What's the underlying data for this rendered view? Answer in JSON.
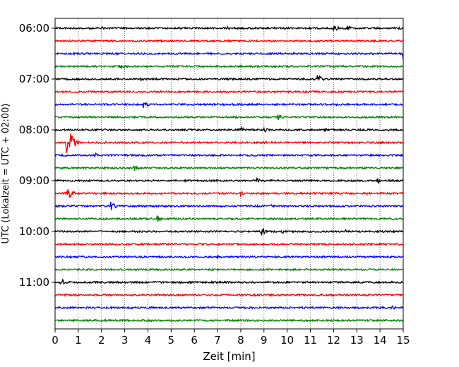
{
  "chart_data": {
    "type": "line",
    "title": "",
    "xlabel": "Zeit  [min]",
    "ylabel": "UTC (Lokalzeit = UTC + 02:00)",
    "xlim": [
      0,
      15
    ],
    "x_ticks": [
      0,
      1,
      2,
      3,
      4,
      5,
      6,
      7,
      8,
      9,
      10,
      11,
      12,
      13,
      14,
      15
    ],
    "y_tick_labels": [
      "06:00",
      "07:00",
      "08:00",
      "09:00",
      "10:00",
      "11:00"
    ],
    "grid": {
      "vertical": true,
      "style": "dotted"
    },
    "trace_colors": [
      "#000000",
      "#ff0000",
      "#0000ff",
      "#008000"
    ],
    "traces": [
      {
        "start": "06:00",
        "events": [
          {
            "t": 2.0,
            "amp": 3
          },
          {
            "t": 7.4,
            "amp": 3
          },
          {
            "t": 12.0,
            "amp": 6
          },
          {
            "t": 12.6,
            "amp": 4
          }
        ]
      },
      {
        "start": "06:15",
        "events": []
      },
      {
        "start": "06:30",
        "events": [
          {
            "t": 15.0,
            "amp": 10
          }
        ]
      },
      {
        "start": "06:45",
        "events": [
          {
            "t": 2.8,
            "amp": 5
          }
        ]
      },
      {
        "start": "07:00",
        "events": [
          {
            "t": 3.7,
            "amp": 3
          },
          {
            "t": 11.3,
            "amp": 8
          }
        ]
      },
      {
        "start": "07:15",
        "events": []
      },
      {
        "start": "07:30",
        "events": [
          {
            "t": 3.8,
            "amp": 6
          }
        ]
      },
      {
        "start": "07:45",
        "events": [
          {
            "t": 9.6,
            "amp": 5
          }
        ]
      },
      {
        "start": "08:00",
        "events": [
          {
            "t": 8.0,
            "amp": 4
          },
          {
            "t": 9.0,
            "amp": 4
          },
          {
            "t": 11.6,
            "amp": 3
          }
        ]
      },
      {
        "start": "08:15",
        "events": [
          {
            "t": 0.5,
            "amp": 36
          },
          {
            "t": 9.0,
            "amp": 3
          }
        ]
      },
      {
        "start": "08:30",
        "events": [
          {
            "t": 1.7,
            "amp": 4
          }
        ]
      },
      {
        "start": "08:45",
        "events": [
          {
            "t": 3.4,
            "amp": 5
          }
        ]
      },
      {
        "start": "09:00",
        "events": [
          {
            "t": 8.7,
            "amp": 4
          },
          {
            "t": 13.9,
            "amp": 4
          }
        ]
      },
      {
        "start": "09:15",
        "events": [
          {
            "t": 0.5,
            "amp": 14
          },
          {
            "t": 8.0,
            "amp": 5
          }
        ]
      },
      {
        "start": "09:30",
        "events": [
          {
            "t": 2.4,
            "amp": 7
          },
          {
            "t": 9.3,
            "amp": 3
          }
        ]
      },
      {
        "start": "09:45",
        "events": [
          {
            "t": 4.4,
            "amp": 6
          }
        ]
      },
      {
        "start": "10:00",
        "events": [
          {
            "t": 8.9,
            "amp": 7
          },
          {
            "t": 9.8,
            "amp": 4
          },
          {
            "t": 12.5,
            "amp": 3
          }
        ]
      },
      {
        "start": "10:15",
        "events": []
      },
      {
        "start": "10:30",
        "events": [
          {
            "t": 7.0,
            "amp": 3
          }
        ]
      },
      {
        "start": "10:45",
        "events": []
      },
      {
        "start": "11:00",
        "events": [
          {
            "t": 0.2,
            "amp": 9
          },
          {
            "t": 6.5,
            "amp": 3
          }
        ]
      },
      {
        "start": "11:15",
        "events": []
      },
      {
        "start": "11:30",
        "events": [
          {
            "t": 14.5,
            "amp": 4
          }
        ]
      },
      {
        "start": "11:45",
        "events": []
      }
    ]
  }
}
